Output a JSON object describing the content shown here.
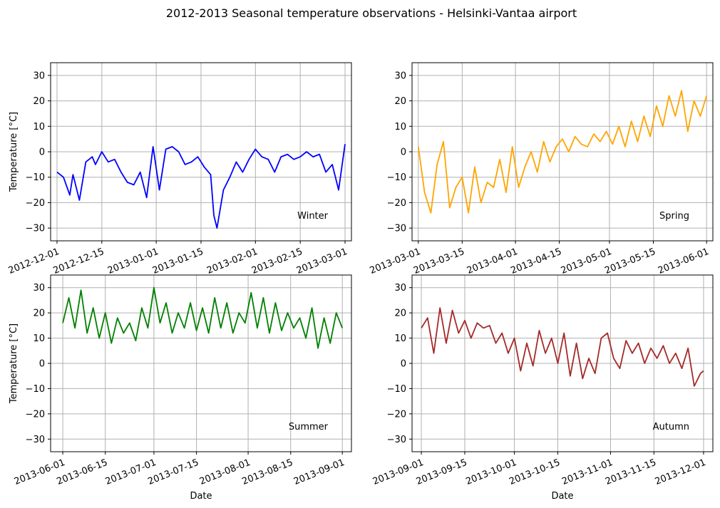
{
  "figure": {
    "title": "2012-2013 Seasonal temperature observations - Helsinki-Vantaa airport"
  },
  "chart_data": [
    {
      "type": "line",
      "title": "",
      "annotation": "Winter",
      "xlabel": "",
      "ylabel": "Temperature [°C]",
      "ylim": [
        -35,
        35
      ],
      "yticks": [
        -30,
        -20,
        -10,
        0,
        10,
        20,
        30
      ],
      "xlim": [
        "2012-11-29",
        "2013-03-03"
      ],
      "xtick_labels": [
        "2012-12-01",
        "2012-12-15",
        "2013-01-01",
        "2013-01-15",
        "2013-02-01",
        "2013-02-15",
        "2013-03-01"
      ],
      "grid": true,
      "color": "#0000ff",
      "series": [
        {
          "x": [
            "2012-12-01",
            "2012-12-03",
            "2012-12-05",
            "2012-12-06",
            "2012-12-08",
            "2012-12-10",
            "2012-12-12",
            "2012-12-13",
            "2012-12-15",
            "2012-12-17",
            "2012-12-19",
            "2012-12-21",
            "2012-12-23",
            "2012-12-25",
            "2012-12-27",
            "2012-12-29",
            "2012-12-31",
            "2013-01-02",
            "2013-01-04",
            "2013-01-06",
            "2013-01-08",
            "2013-01-10",
            "2013-01-12",
            "2013-01-14",
            "2013-01-16",
            "2013-01-18",
            "2013-01-19",
            "2013-01-20",
            "2013-01-22",
            "2013-01-24",
            "2013-01-26",
            "2013-01-28",
            "2013-01-30",
            "2013-02-01",
            "2013-02-03",
            "2013-02-05",
            "2013-02-07",
            "2013-02-09",
            "2013-02-11",
            "2013-02-13",
            "2013-02-15",
            "2013-02-17",
            "2013-02-19",
            "2013-02-21",
            "2013-02-23",
            "2013-02-25",
            "2013-02-27",
            "2013-03-01"
          ],
          "y": [
            -8,
            -10,
            -17,
            -9,
            -19,
            -4,
            -2,
            -5,
            0,
            -4,
            -3,
            -8,
            -12,
            -13,
            -8,
            -18,
            2,
            -15,
            1,
            2,
            0,
            -5,
            -4,
            -2,
            -6,
            -9,
            -25,
            -30,
            -15,
            -10,
            -4,
            -8,
            -3,
            1,
            -2,
            -3,
            -8,
            -2,
            -1,
            -3,
            -2,
            0,
            -2,
            -1,
            -8,
            -5,
            -15,
            3
          ]
        }
      ]
    },
    {
      "type": "line",
      "title": "",
      "annotation": "Spring",
      "xlabel": "",
      "ylabel": "",
      "ylim": [
        -35,
        35
      ],
      "yticks": [
        -30,
        -20,
        -10,
        0,
        10,
        20,
        30
      ],
      "xlim": [
        "2013-02-27",
        "2013-06-03"
      ],
      "xtick_labels": [
        "2013-03-01",
        "2013-03-15",
        "2013-04-01",
        "2013-04-15",
        "2013-05-01",
        "2013-05-15",
        "2013-06-01"
      ],
      "grid": true,
      "color": "#ffa500",
      "series": [
        {
          "x": [
            "2013-03-01",
            "2013-03-03",
            "2013-03-05",
            "2013-03-07",
            "2013-03-09",
            "2013-03-11",
            "2013-03-13",
            "2013-03-15",
            "2013-03-17",
            "2013-03-19",
            "2013-03-21",
            "2013-03-23",
            "2013-03-25",
            "2013-03-27",
            "2013-03-29",
            "2013-03-31",
            "2013-04-02",
            "2013-04-04",
            "2013-04-06",
            "2013-04-08",
            "2013-04-10",
            "2013-04-12",
            "2013-04-14",
            "2013-04-16",
            "2013-04-18",
            "2013-04-20",
            "2013-04-22",
            "2013-04-24",
            "2013-04-26",
            "2013-04-28",
            "2013-04-30",
            "2013-05-02",
            "2013-05-04",
            "2013-05-06",
            "2013-05-08",
            "2013-05-10",
            "2013-05-12",
            "2013-05-14",
            "2013-05-16",
            "2013-05-18",
            "2013-05-20",
            "2013-05-22",
            "2013-05-24",
            "2013-05-26",
            "2013-05-28",
            "2013-05-30",
            "2013-06-01"
          ],
          "y": [
            2,
            -16,
            -24,
            -5,
            4,
            -22,
            -14,
            -10,
            -24,
            -6,
            -20,
            -12,
            -14,
            -3,
            -16,
            2,
            -14,
            -6,
            0,
            -8,
            4,
            -4,
            2,
            5,
            0,
            6,
            3,
            2,
            7,
            4,
            8,
            3,
            10,
            2,
            12,
            4,
            14,
            6,
            18,
            10,
            22,
            14,
            24,
            8,
            20,
            14,
            22
          ]
        }
      ]
    },
    {
      "type": "line",
      "title": "",
      "annotation": "Summer",
      "xlabel": "Date",
      "ylabel": "Temperature [°C]",
      "ylim": [
        -35,
        35
      ],
      "yticks": [
        -30,
        -20,
        -10,
        0,
        10,
        20,
        30
      ],
      "xlim": [
        "2013-05-28",
        "2013-09-04"
      ],
      "xtick_labels": [
        "2013-06-01",
        "2013-06-15",
        "2013-07-01",
        "2013-07-15",
        "2013-08-01",
        "2013-08-15",
        "2013-09-01"
      ],
      "grid": true,
      "color": "#008000",
      "series": [
        {
          "x": [
            "2013-06-01",
            "2013-06-03",
            "2013-06-05",
            "2013-06-07",
            "2013-06-09",
            "2013-06-11",
            "2013-06-13",
            "2013-06-15",
            "2013-06-17",
            "2013-06-19",
            "2013-06-21",
            "2013-06-23",
            "2013-06-25",
            "2013-06-27",
            "2013-06-29",
            "2013-07-01",
            "2013-07-03",
            "2013-07-05",
            "2013-07-07",
            "2013-07-09",
            "2013-07-11",
            "2013-07-13",
            "2013-07-15",
            "2013-07-17",
            "2013-07-19",
            "2013-07-21",
            "2013-07-23",
            "2013-07-25",
            "2013-07-27",
            "2013-07-29",
            "2013-07-31",
            "2013-08-02",
            "2013-08-04",
            "2013-08-06",
            "2013-08-08",
            "2013-08-10",
            "2013-08-12",
            "2013-08-14",
            "2013-08-16",
            "2013-08-18",
            "2013-08-20",
            "2013-08-22",
            "2013-08-24",
            "2013-08-26",
            "2013-08-28",
            "2013-08-30",
            "2013-09-01"
          ],
          "y": [
            16,
            26,
            14,
            29,
            12,
            22,
            10,
            20,
            8,
            18,
            12,
            16,
            9,
            22,
            14,
            30,
            16,
            24,
            12,
            20,
            14,
            24,
            13,
            22,
            12,
            26,
            14,
            24,
            12,
            20,
            16,
            28,
            14,
            26,
            12,
            24,
            13,
            20,
            14,
            18,
            10,
            22,
            6,
            18,
            8,
            20,
            14
          ]
        }
      ]
    },
    {
      "type": "line",
      "title": "",
      "annotation": "Autumn",
      "xlabel": "Date",
      "ylabel": "",
      "ylim": [
        -35,
        35
      ],
      "yticks": [
        -30,
        -20,
        -10,
        0,
        10,
        20,
        30
      ],
      "xlim": [
        "2013-08-29",
        "2013-12-04"
      ],
      "xtick_labels": [
        "2013-09-01",
        "2013-09-15",
        "2013-10-01",
        "2013-10-15",
        "2013-11-01",
        "2013-11-15",
        "2013-12-01"
      ],
      "grid": true,
      "color": "#a52a2a",
      "series": [
        {
          "x": [
            "2013-09-01",
            "2013-09-03",
            "2013-09-05",
            "2013-09-07",
            "2013-09-09",
            "2013-09-11",
            "2013-09-13",
            "2013-09-15",
            "2013-09-17",
            "2013-09-19",
            "2013-09-21",
            "2013-09-23",
            "2013-09-25",
            "2013-09-27",
            "2013-09-29",
            "2013-10-01",
            "2013-10-03",
            "2013-10-05",
            "2013-10-07",
            "2013-10-09",
            "2013-10-11",
            "2013-10-13",
            "2013-10-15",
            "2013-10-17",
            "2013-10-19",
            "2013-10-21",
            "2013-10-23",
            "2013-10-25",
            "2013-10-27",
            "2013-10-29",
            "2013-10-31",
            "2013-11-02",
            "2013-11-04",
            "2013-11-06",
            "2013-11-08",
            "2013-11-10",
            "2013-11-12",
            "2013-11-14",
            "2013-11-16",
            "2013-11-18",
            "2013-11-20",
            "2013-11-22",
            "2013-11-24",
            "2013-11-26",
            "2013-11-28",
            "2013-11-30",
            "2013-12-01"
          ],
          "y": [
            14,
            18,
            4,
            22,
            8,
            21,
            12,
            17,
            10,
            16,
            14,
            15,
            8,
            12,
            4,
            10,
            -3,
            8,
            -1,
            13,
            4,
            10,
            0,
            12,
            -5,
            8,
            -6,
            2,
            -4,
            10,
            12,
            2,
            -2,
            9,
            4,
            8,
            0,
            6,
            2,
            7,
            0,
            4,
            -2,
            6,
            -9,
            -4,
            -3
          ]
        }
      ]
    }
  ]
}
